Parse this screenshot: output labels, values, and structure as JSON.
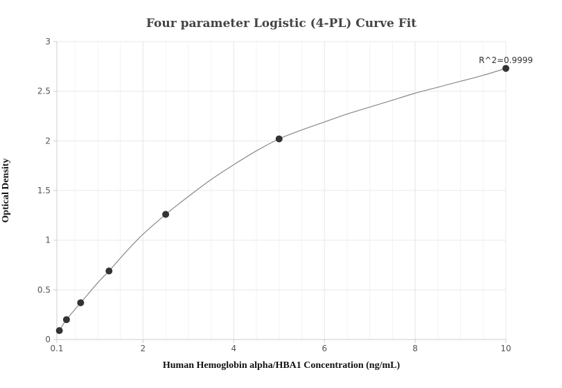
{
  "chart_data": {
    "type": "scatter",
    "title": "Four parameter Logistic (4-PL) Curve Fit",
    "xlabel": "Human Hemoglobin alpha/HBA1 Concentration (ng/mL)",
    "ylabel": "Optical Density",
    "xlim": [
      0.1,
      10
    ],
    "ylim": [
      0,
      3
    ],
    "x_ticks": [
      0.1,
      2,
      4,
      6,
      8,
      10
    ],
    "x_tick_labels": [
      "0.1",
      "2",
      "4",
      "6",
      "8",
      "10"
    ],
    "y_ticks": [
      0,
      0.5,
      1,
      1.5,
      2,
      2.5,
      3
    ],
    "y_tick_labels": [
      "0",
      "0.5",
      "1",
      "1.5",
      "2",
      "2.5",
      "3"
    ],
    "grid": true,
    "annotation": "R^2=0.9999",
    "series": [
      {
        "kind": "points",
        "x": [
          0.156,
          0.313,
          0.625,
          1.25,
          2.5,
          5,
          10
        ],
        "y": [
          0.09,
          0.2,
          0.37,
          0.69,
          1.26,
          2.02,
          2.73
        ],
        "color": "#333333"
      },
      {
        "kind": "fit-curve",
        "x": [
          0.1,
          0.156,
          0.313,
          0.625,
          1.0,
          1.25,
          1.6,
          2.0,
          2.5,
          3.0,
          3.5,
          4.0,
          4.5,
          5.0,
          5.5,
          6.0,
          6.5,
          7.0,
          7.5,
          8.0,
          8.5,
          9.0,
          9.5,
          10.0
        ],
        "y": [
          0.06,
          0.09,
          0.2,
          0.37,
          0.57,
          0.69,
          0.87,
          1.06,
          1.26,
          1.44,
          1.61,
          1.76,
          1.9,
          2.02,
          2.11,
          2.19,
          2.27,
          2.34,
          2.41,
          2.48,
          2.54,
          2.6,
          2.66,
          2.73
        ],
        "color": "#888888"
      }
    ],
    "colors": {
      "grid": "#e8e8e8",
      "axis": "#cccccc",
      "curve": "#888888",
      "points": "#333333"
    }
  }
}
